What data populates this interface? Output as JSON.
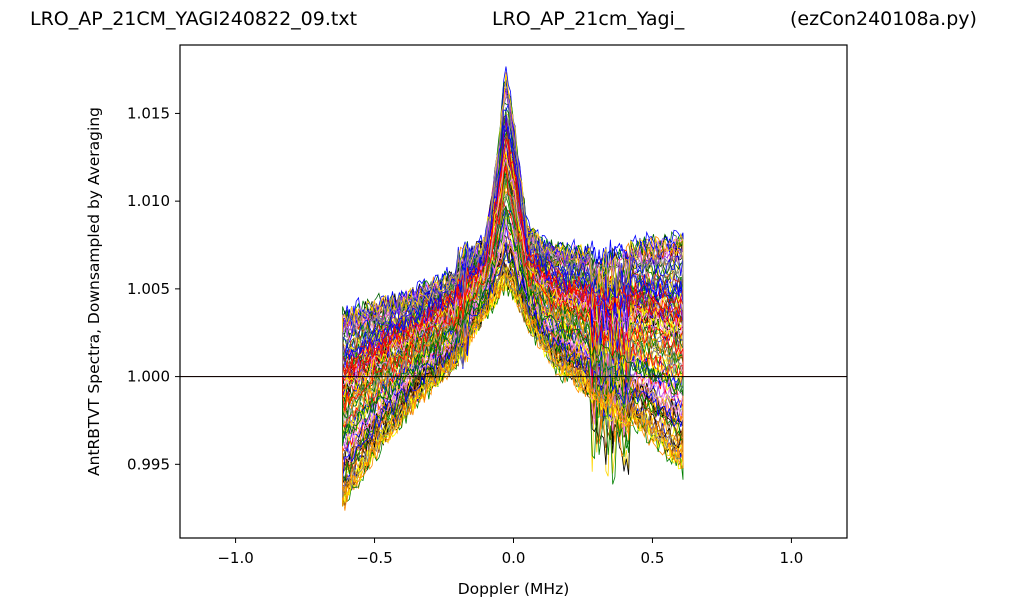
{
  "titles": {
    "left": "LRO_AP_21CM_YAGI240822_09.txt",
    "middle": "LRO_AP_21cm_Yagi_",
    "right": "(ezCon240108a.py)"
  },
  "chart_data": {
    "type": "line",
    "xlabel": "Doppler (MHz)",
    "ylabel": "AntRBTVT Spectra, Downsampled by Averaging",
    "xlim": [
      -1.2,
      1.2
    ],
    "ylim": [
      0.9908,
      1.0189
    ],
    "x_ticks": [
      {
        "value": -1.0,
        "label": "−1.0"
      },
      {
        "value": -0.5,
        "label": "−0.5"
      },
      {
        "value": 0.0,
        "label": "0.0"
      },
      {
        "value": 0.5,
        "label": "0.5"
      },
      {
        "value": 1.0,
        "label": "1.0"
      }
    ],
    "y_ticks": [
      {
        "value": 0.995,
        "label": "0.995"
      },
      {
        "value": 1.0,
        "label": "1.000"
      },
      {
        "value": 1.005,
        "label": "1.005"
      },
      {
        "value": 1.01,
        "label": "1.010"
      },
      {
        "value": 1.015,
        "label": "1.015"
      }
    ],
    "grid": false,
    "data_x_range": [
      -0.615,
      0.61
    ],
    "series_colors": [
      "#000000",
      "#0000ff",
      "#ff0000",
      "#ffd700",
      "#008000",
      "#ff8c00",
      "#8a2be2",
      "#ee82ee",
      "#808080",
      "#8b4513",
      "#ffff00",
      "#006400"
    ],
    "series_count": 120,
    "baseline_y": 1.0,
    "envelope_x": [
      -0.615,
      -0.5,
      -0.35,
      -0.22,
      -0.1,
      -0.05,
      -0.03,
      0.0,
      0.05,
      0.15,
      0.3,
      0.45,
      0.61
    ],
    "envelope_low": [
      0.9925,
      0.9955,
      0.9985,
      1.0005,
      1.0035,
      1.0045,
      1.005,
      1.0045,
      1.003,
      1.0005,
      0.9985,
      0.997,
      0.9945
    ],
    "envelope_high": [
      1.004,
      1.0045,
      1.005,
      1.006,
      1.008,
      1.014,
      1.018,
      1.015,
      1.0085,
      1.0075,
      1.0075,
      1.008,
      1.0085
    ]
  }
}
